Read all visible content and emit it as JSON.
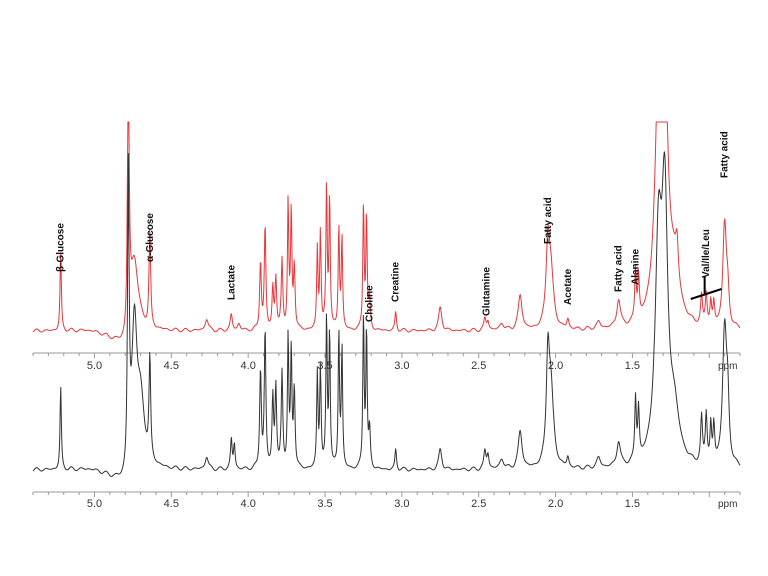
{
  "chart_data": [
    {
      "type": "line",
      "title": "",
      "xlabel": "ppm",
      "x_reversed": true,
      "xlim": [
        5.4,
        0.8
      ],
      "x_ticks": [
        5.0,
        4.5,
        4.0,
        3.5,
        3.0,
        2.5,
        2.0,
        1.5
      ],
      "tick_labels": [
        "5.0",
        "4.5",
        "4.0",
        "3.5",
        "3.0",
        "2.5",
        "2.0",
        "1.5"
      ],
      "series": [
        {
          "color": "#e8373b",
          "baseline": 0.06,
          "peaks": [
            [
              5.22,
              0.34,
              0.005
            ],
            [
              4.78,
              1.25,
              0.006
            ],
            [
              4.74,
              0.3,
              0.03
            ],
            [
              4.64,
              0.42,
              0.006
            ],
            [
              4.27,
              0.05,
              0.012
            ],
            [
              4.11,
              0.07,
              0.008
            ],
            [
              4.06,
              0.03,
              0.01
            ],
            [
              3.92,
              0.3,
              0.006
            ],
            [
              3.89,
              0.45,
              0.006
            ],
            [
              3.84,
              0.18,
              0.006
            ],
            [
              3.82,
              0.22,
              0.006
            ],
            [
              3.78,
              0.3,
              0.006
            ],
            [
              3.74,
              0.55,
              0.005
            ],
            [
              3.72,
              0.5,
              0.005
            ],
            [
              3.7,
              0.28,
              0.006
            ],
            [
              3.55,
              0.35,
              0.005
            ],
            [
              3.53,
              0.42,
              0.005
            ],
            [
              3.49,
              0.62,
              0.005
            ],
            [
              3.47,
              0.58,
              0.005
            ],
            [
              3.41,
              0.45,
              0.005
            ],
            [
              3.39,
              0.4,
              0.005
            ],
            [
              3.25,
              0.55,
              0.005
            ],
            [
              3.23,
              0.5,
              0.005
            ],
            [
              3.21,
              0.12,
              0.006
            ],
            [
              3.04,
              0.08,
              0.006
            ],
            [
              2.75,
              0.1,
              0.012
            ],
            [
              2.46,
              0.05,
              0.008
            ],
            [
              2.44,
              0.04,
              0.008
            ],
            [
              2.35,
              0.03,
              0.015
            ],
            [
              2.23,
              0.15,
              0.015
            ],
            [
              2.05,
              0.35,
              0.014
            ],
            [
              2.03,
              0.22,
              0.02
            ],
            [
              1.92,
              0.04,
              0.008
            ],
            [
              1.72,
              0.03,
              0.015
            ],
            [
              1.59,
              0.12,
              0.014
            ],
            [
              1.48,
              0.22,
              0.006
            ],
            [
              1.46,
              0.18,
              0.006
            ],
            [
              1.33,
              0.95,
              0.028
            ],
            [
              1.29,
              0.95,
              0.024
            ],
            [
              1.23,
              0.2,
              0.04
            ],
            [
              1.21,
              0.15,
              0.01
            ],
            [
              1.05,
              0.12,
              0.007
            ],
            [
              1.02,
              0.14,
              0.007
            ],
            [
              0.99,
              0.1,
              0.006
            ],
            [
              0.97,
              0.1,
              0.006
            ],
            [
              0.9,
              0.45,
              0.014
            ],
            [
              0.88,
              0.12,
              0.01
            ]
          ]
        },
        {
          "color": "#333333",
          "baseline": 0.05,
          "peaks": [
            [
              5.22,
              0.33,
              0.005
            ],
            [
              4.78,
              1.15,
              0.006
            ],
            [
              4.74,
              0.55,
              0.02
            ],
            [
              4.7,
              0.25,
              0.03
            ],
            [
              4.64,
              0.4,
              0.006
            ],
            [
              4.27,
              0.05,
              0.012
            ],
            [
              4.11,
              0.12,
              0.006
            ],
            [
              4.09,
              0.1,
              0.006
            ],
            [
              3.92,
              0.4,
              0.006
            ],
            [
              3.89,
              0.55,
              0.006
            ],
            [
              3.84,
              0.28,
              0.006
            ],
            [
              3.82,
              0.32,
              0.006
            ],
            [
              3.78,
              0.38,
              0.006
            ],
            [
              3.74,
              0.52,
              0.005
            ],
            [
              3.72,
              0.46,
              0.005
            ],
            [
              3.7,
              0.32,
              0.006
            ],
            [
              3.55,
              0.38,
              0.005
            ],
            [
              3.53,
              0.4,
              0.005
            ],
            [
              3.49,
              0.6,
              0.005
            ],
            [
              3.47,
              0.55,
              0.005
            ],
            [
              3.41,
              0.55,
              0.005
            ],
            [
              3.39,
              0.48,
              0.005
            ],
            [
              3.25,
              0.62,
              0.005
            ],
            [
              3.23,
              0.55,
              0.005
            ],
            [
              3.21,
              0.15,
              0.006
            ],
            [
              3.04,
              0.08,
              0.006
            ],
            [
              2.75,
              0.08,
              0.012
            ],
            [
              2.46,
              0.07,
              0.008
            ],
            [
              2.44,
              0.06,
              0.008
            ],
            [
              2.35,
              0.04,
              0.015
            ],
            [
              2.23,
              0.15,
              0.015
            ],
            [
              2.05,
              0.4,
              0.012
            ],
            [
              2.03,
              0.3,
              0.02
            ],
            [
              1.92,
              0.04,
              0.008
            ],
            [
              1.72,
              0.04,
              0.015
            ],
            [
              1.59,
              0.1,
              0.014
            ],
            [
              1.48,
              0.25,
              0.006
            ],
            [
              1.46,
              0.2,
              0.006
            ],
            [
              1.33,
              0.85,
              0.026
            ],
            [
              1.29,
              0.95,
              0.022
            ],
            [
              1.23,
              0.2,
              0.04
            ],
            [
              1.05,
              0.18,
              0.007
            ],
            [
              1.02,
              0.2,
              0.007
            ],
            [
              0.99,
              0.15,
              0.006
            ],
            [
              0.97,
              0.15,
              0.006
            ],
            [
              0.9,
              0.55,
              0.016
            ],
            [
              0.88,
              0.2,
              0.01
            ]
          ]
        }
      ],
      "annotations": [
        {
          "text": "β-Glucose",
          "x": 5.22
        },
        {
          "text": "α-Glucose",
          "x": 4.64
        },
        {
          "text": "Lactate",
          "x": 4.11
        },
        {
          "text": "Choline",
          "x": 3.21
        },
        {
          "text": "Creatine",
          "x": 3.04
        },
        {
          "text": "Glutamine",
          "x": 2.45
        },
        {
          "text": "Fatty acid",
          "x": 2.05
        },
        {
          "text": "Acetate",
          "x": 1.92
        },
        {
          "text": "Fatty acid",
          "x": 1.59
        },
        {
          "text": "Alanine",
          "x": 1.48
        },
        {
          "text": "Val/Ile/Leu",
          "x": 1.02
        },
        {
          "text": "Fatty acid",
          "x": 0.9
        }
      ],
      "grid": false
    }
  ]
}
